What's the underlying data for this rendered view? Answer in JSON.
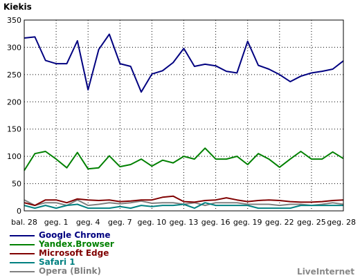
{
  "brand": "LiveInternet",
  "chart_data": {
    "type": "line",
    "title": "",
    "ylabel": "Kiekis",
    "xlabel": "",
    "ylim": [
      0,
      350
    ],
    "yticks": [
      0,
      50,
      100,
      150,
      200,
      250,
      300,
      350
    ],
    "grid": true,
    "legend_placement": "bottom-left",
    "x_tick_labels": [
      "bal. 28",
      "geg. 1",
      "geg. 4",
      "geg. 7",
      "geg. 10",
      "geg. 13",
      "geg. 16",
      "geg. 19",
      "geg. 22",
      "geg. 25",
      "geg. 28"
    ],
    "series": [
      {
        "name": "Google Chrome",
        "color": "#000080",
        "values": [
          317,
          319,
          276,
          270,
          270,
          312,
          222,
          296,
          324,
          270,
          265,
          218,
          251,
          257,
          272,
          298,
          265,
          269,
          266,
          256,
          253,
          311,
          267,
          260,
          250,
          237,
          247,
          253,
          256,
          260,
          275
        ]
      },
      {
        "name": "Yandex.Browser",
        "color": "#008000",
        "values": [
          74,
          105,
          109,
          95,
          79,
          107,
          77,
          79,
          101,
          81,
          85,
          95,
          82,
          93,
          88,
          100,
          95,
          115,
          95,
          95,
          100,
          85,
          105,
          95,
          80,
          95,
          109,
          95,
          95,
          108,
          96
        ]
      },
      {
        "name": "Microsoft Edge",
        "color": "#800000",
        "values": [
          15,
          10,
          20,
          20,
          15,
          22,
          20,
          19,
          20,
          17,
          18,
          20,
          20,
          25,
          27,
          17,
          16,
          19,
          20,
          24,
          20,
          17,
          19,
          20,
          19,
          17,
          16,
          16,
          17,
          19,
          20
        ]
      },
      {
        "name": "Safari 1",
        "color": "#008080",
        "values": [
          10,
          5,
          10,
          5,
          10,
          12,
          5,
          5,
          5,
          8,
          5,
          10,
          8,
          10,
          10,
          12,
          5,
          15,
          10,
          10,
          10,
          10,
          5,
          5,
          5,
          5,
          10,
          10,
          10,
          10,
          10
        ]
      },
      {
        "name": "Opera (Blink)",
        "color": "#808080",
        "values": [
          20,
          10,
          15,
          15,
          10,
          20,
          10,
          12,
          15,
          13,
          15,
          18,
          14,
          15,
          15,
          12,
          15,
          10,
          15,
          15,
          15,
          12,
          12,
          12,
          10,
          12,
          12,
          10,
          12,
          15,
          12
        ]
      }
    ]
  }
}
